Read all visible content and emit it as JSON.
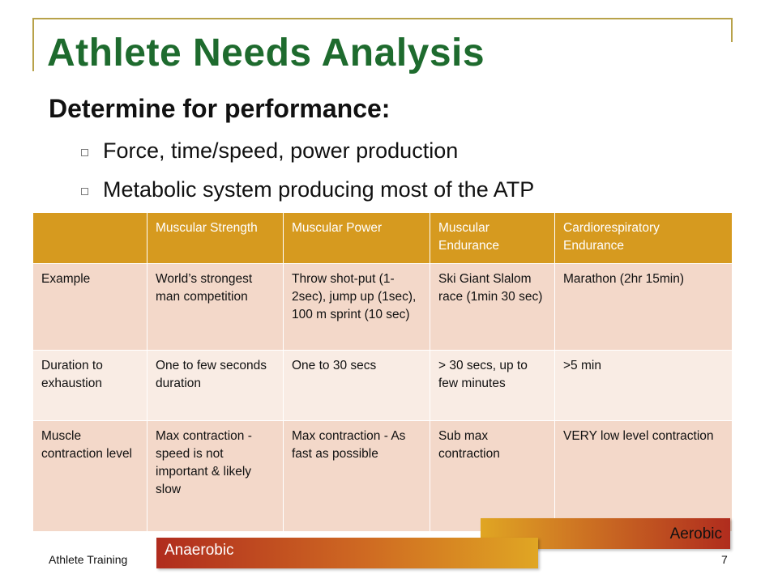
{
  "slide": {
    "title": "Athlete Needs Analysis",
    "subtitle": "Determine for performance:",
    "bullets": [
      "Force, time/speed, power production",
      "Metabolic system producing most of the ATP"
    ],
    "footer_left": "Athlete Training",
    "page_number": "7"
  },
  "table": {
    "headers": [
      "",
      "Muscular Strength",
      "Muscular Power",
      "Muscular Endurance",
      "Cardiorespiratory Endurance"
    ],
    "rows": [
      [
        "Example",
        "World’s strongest man competition",
        "Throw shot-put (1-2sec), jump up (1sec), 100 m sprint (10 sec)",
        "Ski Giant Slalom race (1min 30 sec)",
        "Marathon (2hr 15min)"
      ],
      [
        "Duration to exhaustion",
        "One to few seconds duration",
        "One to 30 secs",
        "> 30 secs, up to few minutes",
        ">5 min"
      ],
      [
        "Muscle contraction level",
        "Max contraction - speed is not important & likely slow",
        "Max contraction - As fast as possible",
        "Sub max contraction",
        "VERY low level contraction"
      ]
    ]
  },
  "bars": {
    "aerobic": "Aerobic",
    "anaerobic": "Anaerobic"
  },
  "colors": {
    "title": "#1e6b2e",
    "header_bg": "#d69a1f",
    "row_dark": "#f3d8c9",
    "row_light": "#f9ece4",
    "accent_red": "#b02c1e"
  },
  "icons": {
    "bullet": "hollow-square-bullet-icon"
  }
}
